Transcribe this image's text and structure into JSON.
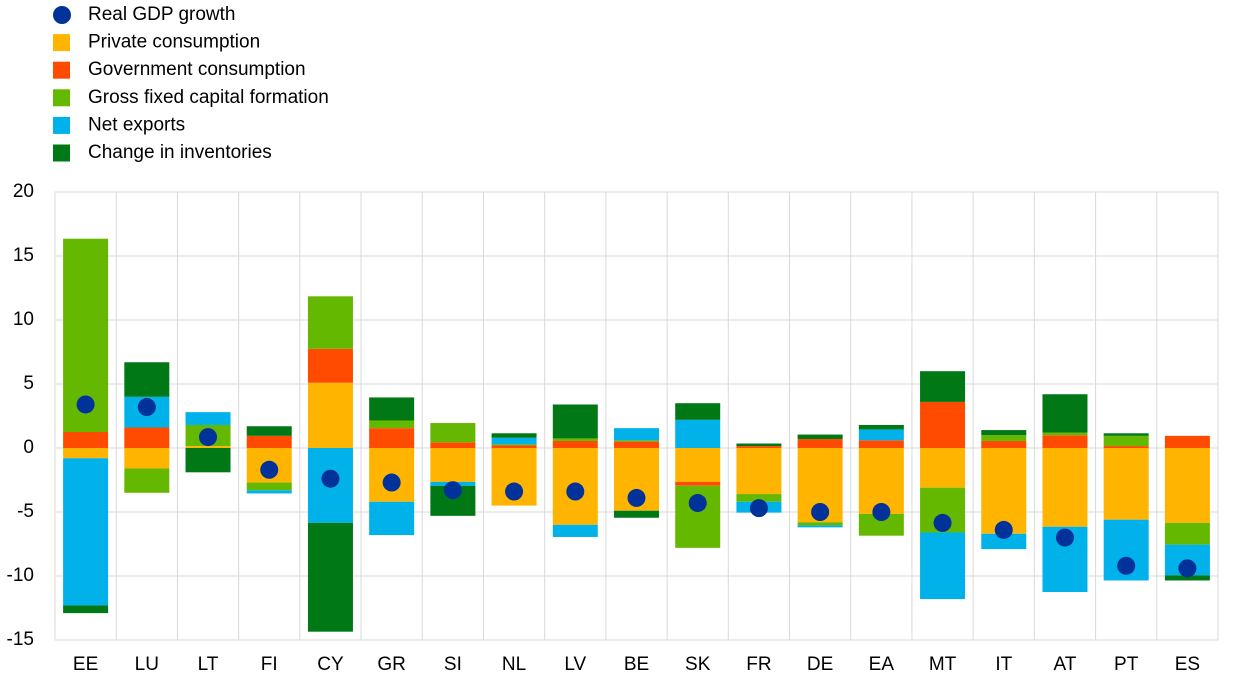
{
  "chart_data": {
    "type": "bar",
    "stacked": true,
    "categories": [
      "EE",
      "LU",
      "LT",
      "FI",
      "CY",
      "GR",
      "SI",
      "NL",
      "LV",
      "BE",
      "SK",
      "FR",
      "DE",
      "EA",
      "MT",
      "IT",
      "AT",
      "PT",
      "ES"
    ],
    "series": [
      {
        "name": "Real GDP growth",
        "type": "scatter",
        "color": "#003299",
        "values": [
          3.4,
          3.2,
          0.85,
          -1.7,
          -2.4,
          -2.7,
          -3.3,
          -3.4,
          -3.4,
          -3.9,
          -4.3,
          -4.7,
          -5.0,
          -5.0,
          -5.85,
          -6.4,
          -7.0,
          -9.2,
          -9.4
        ]
      },
      {
        "name": "Private consumption",
        "color": "#ffb400",
        "values": [
          -0.8,
          -1.6,
          0.15,
          -2.7,
          5.1,
          -4.2,
          -2.65,
          -4.5,
          -6.0,
          -4.9,
          -2.65,
          -3.6,
          -5.8,
          -5.15,
          -3.1,
          -6.7,
          -6.15,
          -5.6,
          -5.85
        ]
      },
      {
        "name": "Government consumption",
        "color": "#ff4b00",
        "values": [
          1.25,
          1.6,
          0,
          0.95,
          2.65,
          1.55,
          0.45,
          0.2,
          0.55,
          0.5,
          -0.3,
          0.15,
          0.7,
          0.6,
          3.6,
          0.55,
          1.0,
          0.15,
          0.95
        ]
      },
      {
        "name": "Gross fixed capital formation",
        "color": "#65b800",
        "values": [
          15.1,
          -1.9,
          1.65,
          -0.6,
          4.1,
          0.6,
          1.5,
          0.1,
          0.2,
          0.1,
          -4.85,
          -0.6,
          -0.25,
          -1.7,
          -3.5,
          0.45,
          0.2,
          0.8,
          -1.7
        ]
      },
      {
        "name": "Net exports",
        "color": "#00b1ea",
        "values": [
          -11.5,
          2.4,
          1.0,
          -0.25,
          -5.85,
          -2.6,
          -0.3,
          0.5,
          -0.95,
          0.95,
          2.2,
          -0.85,
          -0.15,
          0.85,
          -5.2,
          -1.2,
          -5.1,
          -4.75,
          -2.4
        ]
      },
      {
        "name": "Change in inventories",
        "color": "#007816",
        "values": [
          -0.6,
          2.7,
          -1.9,
          0.75,
          -8.5,
          1.8,
          -2.35,
          0.35,
          2.65,
          -0.55,
          1.3,
          0.2,
          0.35,
          0.35,
          2.4,
          0.4,
          3.0,
          0.2,
          -0.4
        ]
      }
    ],
    "ylim": [
      -15,
      20
    ],
    "yticks": [
      -15,
      -10,
      -5,
      0,
      5,
      10,
      15,
      20
    ],
    "grid": true,
    "legend": "top-left"
  }
}
